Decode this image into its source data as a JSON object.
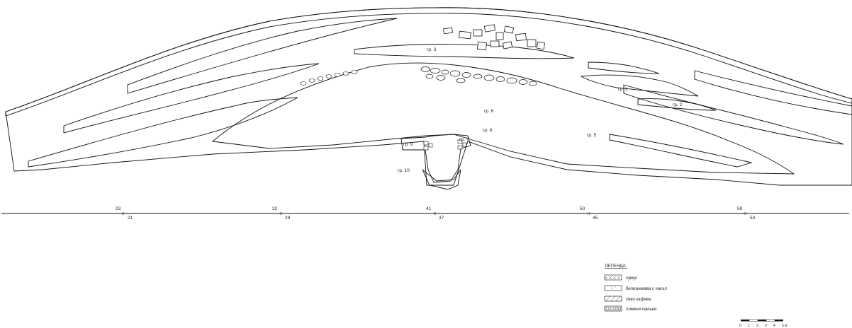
{
  "section": {
    "layers": [
      {
        "label": "гр. 3"
      },
      {
        "label": "гр. 1"
      },
      {
        "label": "гр. 2"
      },
      {
        "label": "гр. 6"
      },
      {
        "label": "гр. 8"
      },
      {
        "label": "гр. 7"
      },
      {
        "label": "гр. 9"
      },
      {
        "label": "гр. 5"
      },
      {
        "label": "гр. 10"
      }
    ]
  },
  "baseline": {
    "stations": [
      {
        "upper": "23",
        "lower": "21"
      },
      {
        "upper": "32",
        "lower": "29"
      },
      {
        "upper": "41",
        "lower": "37"
      },
      {
        "upper": "50",
        "lower": "45"
      },
      {
        "upper": "59",
        "lower": "53"
      }
    ]
  },
  "legend": {
    "title": "ЛЕГЕНДА:",
    "items": [
      {
        "label": "хумус"
      },
      {
        "label": "белезникава с чакъл"
      },
      {
        "label": "сиво кафява"
      },
      {
        "label": "ломени камъни"
      }
    ]
  },
  "scale": {
    "ticks": [
      "0",
      "1",
      "2",
      "3",
      "4",
      "5 м"
    ]
  }
}
